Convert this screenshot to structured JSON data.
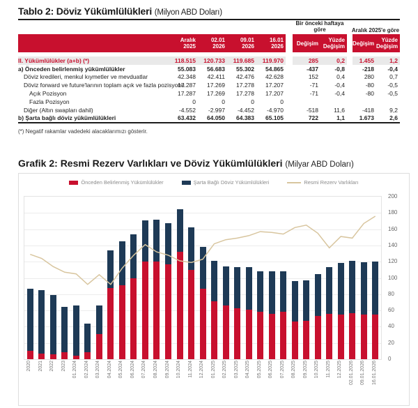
{
  "table_section": {
    "title": "Tablo 2: Döviz Yükümlülükleri",
    "subtitle": "(Milyon ABD Doları)",
    "group_headers": {
      "prev_week_line1": "Bir önceki haftaya",
      "prev_week_line2": "göre",
      "vs_december": "Aralık 2025'e göre"
    },
    "date_columns": [
      "Aralık 2025",
      "02.01 2026",
      "09.01 2026",
      "16.01 2026"
    ],
    "change_headers": {
      "change": "Değişim",
      "pct_change": "Yüzde Değişim"
    },
    "rows": [
      {
        "label": "II. Yükümlülükler (a+b) (*)",
        "style": "total",
        "indent": 0,
        "values": [
          "118.515",
          "120.733",
          "119.685",
          "119.970"
        ],
        "week": [
          "285",
          "0,2"
        ],
        "dec": [
          "1.455",
          "1,2"
        ]
      },
      {
        "label": "a) Önceden belirlenmiş yükümlülükler",
        "style": "bold",
        "indent": 0,
        "values": [
          "55.083",
          "56.683",
          "55.302",
          "54.865"
        ],
        "week": [
          "-437",
          "-0,8"
        ],
        "dec": [
          "-218",
          "-0,4"
        ]
      },
      {
        "label": "Döviz kredileri, menkul kıymetler ve mevduatlar",
        "style": "",
        "indent": 1,
        "values": [
          "42.348",
          "42.411",
          "42.476",
          "42.628"
        ],
        "week": [
          "152",
          "0,4"
        ],
        "dec": [
          "280",
          "0,7"
        ]
      },
      {
        "label": "Döviz forward ve future'larının toplam açık ve fazla pozisyonu",
        "style": "",
        "indent": 1,
        "values": [
          "17.287",
          "17.269",
          "17.278",
          "17.207"
        ],
        "week": [
          "-71",
          "-0,4"
        ],
        "dec": [
          "-80",
          "-0,5"
        ]
      },
      {
        "label": "Açık Pozisyon",
        "style": "",
        "indent": 2,
        "values": [
          "17.287",
          "17.269",
          "17.278",
          "17.207"
        ],
        "week": [
          "-71",
          "-0,4"
        ],
        "dec": [
          "-80",
          "-0,5"
        ]
      },
      {
        "label": "Fazla Pozisyon",
        "style": "",
        "indent": 2,
        "values": [
          "0",
          "0",
          "0",
          "0"
        ],
        "week": [
          "",
          ""
        ],
        "dec": [
          "",
          ""
        ]
      },
      {
        "label": "Diğer (Altın swapları dahil)",
        "style": "",
        "indent": 1,
        "values": [
          "-4.552",
          "-2.997",
          "-4.452",
          "-4.970"
        ],
        "week": [
          "-518",
          "11,6"
        ],
        "dec": [
          "-418",
          "9,2"
        ]
      },
      {
        "label": "b) Şarta bağlı döviz yükümlülükleri",
        "style": "bold",
        "indent": 0,
        "values": [
          "63.432",
          "64.050",
          "64.383",
          "65.105"
        ],
        "week": [
          "722",
          "1,1"
        ],
        "dec": [
          "1.673",
          "2,6"
        ]
      }
    ],
    "footnote": "(*) Negatif rakamlar vadedeki alacaklarımızı gösterir."
  },
  "chart_section": {
    "title": "Grafik 2: Resmi Rezerv Varlıkları ve Döviz Yükümlülükleri",
    "subtitle": "(Milyar ABD Doları)"
  },
  "chart_data": {
    "type": "bar",
    "note": "stacked bars with overlaid line, y axis on right",
    "categories": [
      "2020",
      "2021",
      "2022",
      "2023",
      "01.2024",
      "02.2024",
      "03.2024",
      "04.2024",
      "05.2024",
      "06.2024",
      "07.2024",
      "08.2024",
      "09.2024",
      "10.2024",
      "11.2024",
      "12.2024",
      "01.2025",
      "02.2025",
      "03.2025",
      "04.2025",
      "05.2025",
      "06.2025",
      "07.2025",
      "08.2025",
      "09.2025",
      "10.2025",
      "11.2025",
      "12.2025",
      "02.01.2026",
      "09.01.2026",
      "16.01.2026"
    ],
    "series": [
      {
        "name": "Önceden Belirlenmiş Yükümlülükler",
        "type": "bar",
        "stack": true,
        "color": "#c8102e",
        "values": [
          10,
          7,
          6,
          9,
          4,
          9,
          31,
          88,
          91,
          100,
          120,
          120,
          117,
          132,
          110,
          87,
          71,
          66,
          63,
          61,
          58,
          56,
          58,
          46,
          47,
          53,
          56,
          55.1,
          56.7,
          55.3,
          54.9
        ]
      },
      {
        "name": "Şarta Bağlı Döviz Yükümlülükleri",
        "type": "bar",
        "stack": true,
        "color": "#1e3a56",
        "values": [
          77,
          78,
          73,
          55,
          62,
          35,
          35,
          46,
          54,
          54,
          51,
          52,
          50,
          53,
          52,
          51,
          50,
          48,
          50,
          52,
          50,
          52,
          50,
          50,
          50,
          52,
          57,
          63.4,
          64.1,
          64.4,
          65.1
        ]
      },
      {
        "name": "Resmi Rezerv Varlıkları",
        "type": "line",
        "color": "#d8c59e",
        "values": [
          129,
          124,
          114,
          107,
          105,
          92,
          104,
          92,
          112,
          128,
          141,
          132,
          128,
          121,
          119,
          123,
          142,
          147,
          149,
          152,
          157,
          156,
          154,
          162,
          165,
          155,
          137,
          151,
          149,
          167,
          176
        ]
      }
    ],
    "ylim": [
      0,
      200
    ],
    "ytick_step": 20,
    "yaxis_position": "right",
    "grid": true,
    "legend_position": "top"
  }
}
